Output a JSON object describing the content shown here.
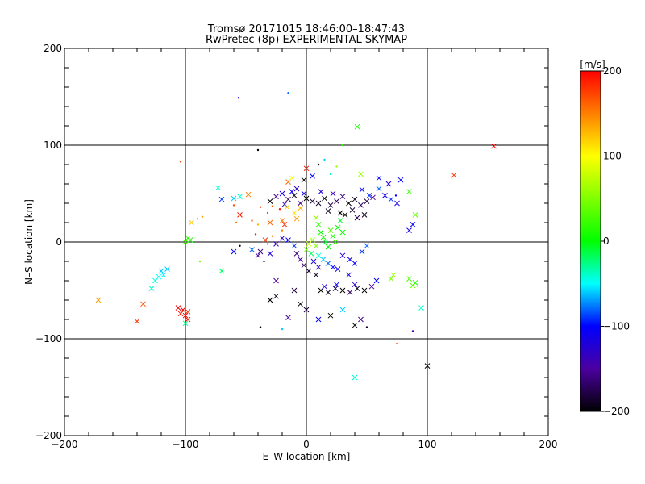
{
  "chart_data": {
    "type": "scatter",
    "title_line1": "Tromsø 20171015 18:46:00–18:47:43",
    "title_line2": "RwPretec (8p) EXPERIMENTAL SKYMAP",
    "xlabel": "E–W location [km]",
    "ylabel": "N–S location [km]",
    "xlim": [
      -200,
      200
    ],
    "ylim": [
      -200,
      200
    ],
    "x_ticks": [
      -200,
      -100,
      0,
      100,
      200
    ],
    "y_ticks": [
      -200,
      -100,
      0,
      100,
      200
    ],
    "x_tick_labels": [
      "−200",
      "−100",
      "0",
      "100",
      "200"
    ],
    "y_tick_labels": [
      "−200",
      "−100",
      "0",
      "100",
      "200"
    ],
    "grid_lines": [
      -100,
      0,
      100
    ],
    "colorbar": {
      "label": "[m/s]",
      "range": [
        -200,
        200
      ],
      "ticks": [
        200,
        100,
        0,
        -100,
        -200
      ],
      "tick_labels": [
        "200",
        "100",
        "0",
        "−100",
        "−200"
      ],
      "colors": [
        "#ff0000",
        "#ffff00",
        "#00ff00",
        "#00ffff",
        "#0000ff",
        "#4b00a0",
        "#000000"
      ]
    },
    "points": [
      [
        -56,
        149,
        -110,
        "dot"
      ],
      [
        -15,
        154,
        -80,
        "dot"
      ],
      [
        42,
        119,
        10,
        "x"
      ],
      [
        155,
        99,
        200,
        "x"
      ],
      [
        122,
        69,
        180,
        "x"
      ],
      [
        -104,
        83,
        170,
        "dot"
      ],
      [
        -55,
        47,
        -40,
        "x"
      ],
      [
        -60,
        45,
        -60,
        "x"
      ],
      [
        -70,
        44,
        -90,
        "x"
      ],
      [
        -73,
        56,
        -40,
        "x"
      ],
      [
        -48,
        49,
        150,
        "x"
      ],
      [
        -60,
        38,
        170,
        "dot"
      ],
      [
        -30,
        42,
        -200,
        "x"
      ],
      [
        -25,
        47,
        -150,
        "x"
      ],
      [
        -20,
        50,
        -120,
        "x"
      ],
      [
        -15,
        44,
        -170,
        "x"
      ],
      [
        -10,
        48,
        -190,
        "x"
      ],
      [
        -5,
        40,
        -160,
        "x"
      ],
      [
        0,
        45,
        -200,
        "x"
      ],
      [
        5,
        42,
        -180,
        "x"
      ],
      [
        -12,
        52,
        -100,
        "x"
      ],
      [
        -18,
        39,
        -140,
        "x"
      ],
      [
        -8,
        55,
        -130,
        "x"
      ],
      [
        -2,
        50,
        -110,
        "x"
      ],
      [
        10,
        40,
        -190,
        "x"
      ],
      [
        15,
        45,
        -200,
        "x"
      ],
      [
        20,
        38,
        -180,
        "x"
      ],
      [
        25,
        42,
        -170,
        "x"
      ],
      [
        30,
        47,
        -160,
        "x"
      ],
      [
        35,
        40,
        -200,
        "x"
      ],
      [
        40,
        44,
        -190,
        "x"
      ],
      [
        45,
        38,
        -170,
        "x"
      ],
      [
        50,
        42,
        -180,
        "x"
      ],
      [
        55,
        46,
        -150,
        "x"
      ],
      [
        18,
        32,
        -190,
        "x"
      ],
      [
        28,
        30,
        -200,
        "x"
      ],
      [
        38,
        33,
        -180,
        "x"
      ],
      [
        48,
        28,
        -190,
        "x"
      ],
      [
        42,
        25,
        -170,
        "x"
      ],
      [
        32,
        28,
        -200,
        "x"
      ],
      [
        22,
        50,
        -140,
        "x"
      ],
      [
        12,
        52,
        -120,
        "x"
      ],
      [
        46,
        54,
        -100,
        "x"
      ],
      [
        52,
        48,
        -90,
        "x"
      ],
      [
        60,
        55,
        -80,
        "x"
      ],
      [
        65,
        48,
        -110,
        "x"
      ],
      [
        70,
        44,
        -90,
        "x"
      ],
      [
        75,
        40,
        -120,
        "x"
      ],
      [
        78,
        64,
        -100,
        "x"
      ],
      [
        85,
        52,
        20,
        "x"
      ],
      [
        90,
        28,
        40,
        "x"
      ],
      [
        88,
        18,
        -100,
        "x"
      ],
      [
        85,
        12,
        -120,
        "x"
      ],
      [
        -38,
        36,
        180,
        "dot"
      ],
      [
        -32,
        30,
        170,
        "dot"
      ],
      [
        -28,
        37,
        160,
        "dot"
      ],
      [
        -22,
        34,
        190,
        "dot"
      ],
      [
        -16,
        36,
        120,
        "x"
      ],
      [
        -10,
        30,
        110,
        "x"
      ],
      [
        -5,
        35,
        130,
        "x"
      ],
      [
        -45,
        22,
        170,
        "dot"
      ],
      [
        -55,
        28,
        190,
        "x"
      ],
      [
        -58,
        20,
        150,
        "dot"
      ],
      [
        -40,
        18,
        130,
        "dot"
      ],
      [
        -30,
        20,
        160,
        "x"
      ],
      [
        -20,
        22,
        150,
        "x"
      ],
      [
        -18,
        18,
        180,
        "x"
      ],
      [
        -8,
        24,
        140,
        "x"
      ],
      [
        8,
        25,
        60,
        "x"
      ],
      [
        10,
        18,
        20,
        "x"
      ],
      [
        12,
        10,
        0,
        "x"
      ],
      [
        14,
        5,
        10,
        "x"
      ],
      [
        16,
        0,
        -10,
        "x"
      ],
      [
        18,
        -5,
        0,
        "x"
      ],
      [
        20,
        12,
        30,
        "x"
      ],
      [
        22,
        6,
        10,
        "x"
      ],
      [
        24,
        0,
        20,
        "x"
      ],
      [
        26,
        15,
        0,
        "x"
      ],
      [
        28,
        22,
        -10,
        "x"
      ],
      [
        30,
        10,
        5,
        "x"
      ],
      [
        5,
        2,
        60,
        "x"
      ],
      [
        2,
        -2,
        80,
        "x"
      ],
      [
        8,
        -4,
        50,
        "x"
      ],
      [
        0,
        -8,
        40,
        "x"
      ],
      [
        4,
        -12,
        -20,
        "x"
      ],
      [
        10,
        -14,
        -40,
        "x"
      ],
      [
        14,
        -18,
        -60,
        "x"
      ],
      [
        18,
        -22,
        -80,
        "x"
      ],
      [
        22,
        -26,
        -100,
        "x"
      ],
      [
        26,
        -28,
        -110,
        "x"
      ],
      [
        6,
        -20,
        -120,
        "x"
      ],
      [
        10,
        -26,
        -130,
        "x"
      ],
      [
        2,
        -30,
        -180,
        "x"
      ],
      [
        8,
        -34,
        -190,
        "x"
      ],
      [
        -2,
        -24,
        -170,
        "x"
      ],
      [
        -5,
        -18,
        -150,
        "x"
      ],
      [
        -8,
        -12,
        -160,
        "x"
      ],
      [
        30,
        -14,
        -120,
        "x"
      ],
      [
        36,
        -18,
        -110,
        "x"
      ],
      [
        40,
        -22,
        -100,
        "x"
      ],
      [
        46,
        -10,
        -90,
        "x"
      ],
      [
        50,
        -4,
        -80,
        "x"
      ],
      [
        35,
        -34,
        -110,
        "x"
      ],
      [
        12,
        -50,
        -200,
        "x"
      ],
      [
        18,
        -52,
        -190,
        "x"
      ],
      [
        24,
        -48,
        -180,
        "x"
      ],
      [
        30,
        -50,
        -200,
        "x"
      ],
      [
        36,
        -52,
        -170,
        "x"
      ],
      [
        42,
        -48,
        -190,
        "x"
      ],
      [
        48,
        -50,
        -200,
        "x"
      ],
      [
        15,
        -46,
        -120,
        "x"
      ],
      [
        25,
        -44,
        -100,
        "x"
      ],
      [
        40,
        -44,
        -130,
        "x"
      ],
      [
        54,
        -46,
        -150,
        "x"
      ],
      [
        58,
        -40,
        -100,
        "x"
      ],
      [
        -25,
        -40,
        -150,
        "x"
      ],
      [
        -30,
        -60,
        -200,
        "x"
      ],
      [
        -25,
        -56,
        -190,
        "x"
      ],
      [
        -10,
        -50,
        -180,
        "x"
      ],
      [
        -5,
        -64,
        -200,
        "x"
      ],
      [
        -15,
        -78,
        -150,
        "x"
      ],
      [
        0,
        -70,
        -180,
        "x"
      ],
      [
        10,
        -80,
        -100,
        "x"
      ],
      [
        20,
        -76,
        -200,
        "x"
      ],
      [
        40,
        -86,
        -200,
        "x"
      ],
      [
        45,
        -80,
        -160,
        "x"
      ],
      [
        30,
        -70,
        -60,
        "x"
      ],
      [
        -20,
        -90,
        -60,
        "dot"
      ],
      [
        -38,
        -88,
        -200,
        "dot"
      ],
      [
        50,
        -88,
        -190,
        "dot"
      ],
      [
        88,
        -92,
        -140,
        "dot"
      ],
      [
        100,
        -128,
        -200,
        "x"
      ],
      [
        40,
        -140,
        -40,
        "x"
      ],
      [
        75,
        -105,
        190,
        "dot"
      ],
      [
        95,
        -68,
        -40,
        "x"
      ],
      [
        88,
        -45,
        40,
        "x"
      ],
      [
        85,
        -38,
        30,
        "x"
      ],
      [
        90,
        -42,
        10,
        "x"
      ],
      [
        70,
        -38,
        50,
        "x"
      ],
      [
        72,
        -34,
        60,
        "x"
      ],
      [
        -120,
        -30,
        -60,
        "x"
      ],
      [
        -118,
        -34,
        -55,
        "x"
      ],
      [
        -122,
        -36,
        -50,
        "x"
      ],
      [
        -115,
        -28,
        -60,
        "x"
      ],
      [
        -125,
        -40,
        -45,
        "x"
      ],
      [
        -128,
        -48,
        -40,
        "x"
      ],
      [
        -102,
        -70,
        200,
        "x"
      ],
      [
        -104,
        -74,
        190,
        "x"
      ],
      [
        -100,
        -76,
        200,
        "x"
      ],
      [
        -98,
        -72,
        180,
        "x"
      ],
      [
        -106,
        -68,
        200,
        "x"
      ],
      [
        -98,
        -80,
        190,
        "x"
      ],
      [
        -140,
        -82,
        180,
        "x"
      ],
      [
        -135,
        -64,
        170,
        "x"
      ],
      [
        -172,
        -60,
        140,
        "x"
      ],
      [
        -100,
        -84,
        -30,
        "x"
      ],
      [
        -98,
        4,
        20,
        "x"
      ],
      [
        -100,
        0,
        30,
        "x"
      ],
      [
        -96,
        2,
        10,
        "x"
      ],
      [
        -95,
        20,
        120,
        "x"
      ],
      [
        -90,
        24,
        130,
        "dot"
      ],
      [
        -86,
        26,
        140,
        "dot"
      ],
      [
        -88,
        -20,
        40,
        "dot"
      ],
      [
        -70,
        -30,
        -20,
        "x"
      ],
      [
        -60,
        -10,
        -100,
        "x"
      ],
      [
        -55,
        -4,
        -200,
        "dot"
      ],
      [
        -45,
        -8,
        -80,
        "x"
      ],
      [
        -40,
        -14,
        -150,
        "x"
      ],
      [
        -38,
        -10,
        -160,
        "x"
      ],
      [
        -35,
        -20,
        -200,
        "dot"
      ],
      [
        -30,
        -12,
        -120,
        "x"
      ],
      [
        -25,
        -2,
        -140,
        "x"
      ],
      [
        -20,
        4,
        -130,
        "x"
      ],
      [
        -15,
        2,
        -100,
        "x"
      ],
      [
        -10,
        -4,
        -90,
        "x"
      ],
      [
        -34,
        2,
        180,
        "x"
      ],
      [
        -28,
        6,
        160,
        "dot"
      ],
      [
        -32,
        -2,
        170,
        "dot"
      ],
      [
        -42,
        8,
        190,
        "dot"
      ],
      [
        -20,
        12,
        150,
        "dot"
      ],
      [
        -2,
        64,
        -200,
        "x"
      ],
      [
        0,
        76,
        190,
        "x"
      ],
      [
        5,
        68,
        -100,
        "x"
      ],
      [
        -15,
        62,
        160,
        "x"
      ],
      [
        -12,
        66,
        100,
        "x"
      ],
      [
        10,
        80,
        -200,
        "dot"
      ],
      [
        20,
        70,
        -30,
        "dot"
      ],
      [
        25,
        78,
        60,
        "dot"
      ],
      [
        30,
        100,
        20,
        "dot"
      ],
      [
        15,
        85,
        -60,
        "dot"
      ],
      [
        -40,
        95,
        -200,
        "dot"
      ],
      [
        45,
        70,
        60,
        "x"
      ],
      [
        60,
        66,
        -100,
        "x"
      ],
      [
        68,
        60,
        -120,
        "x"
      ],
      [
        74,
        48,
        -100,
        "dot"
      ]
    ]
  }
}
